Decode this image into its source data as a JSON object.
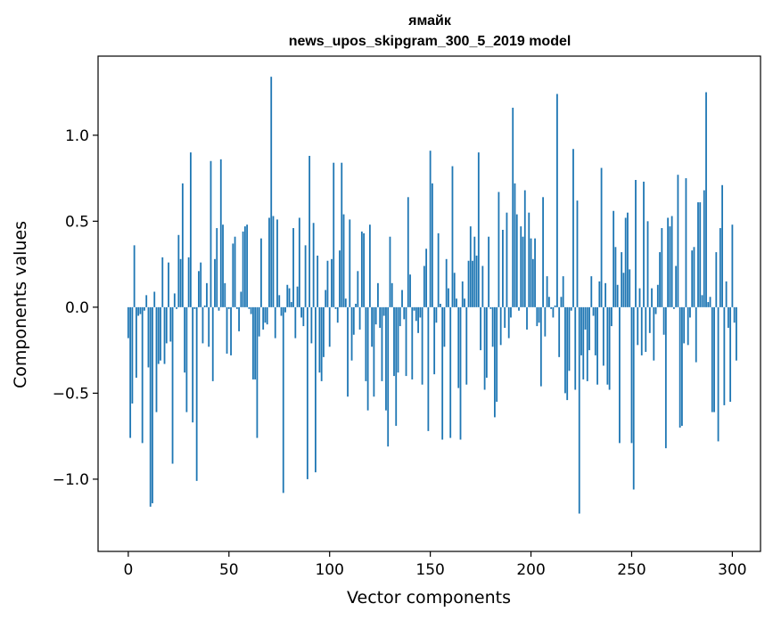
{
  "chart_data": {
    "type": "bar",
    "title": "ямайк",
    "subtitle": "news_upos_skipgram_300_5_2019 model",
    "xlabel": "Vector components",
    "ylabel": "Components values",
    "xlim": [
      -15,
      314
    ],
    "ylim": [
      -1.42,
      1.46
    ],
    "xticks": [
      0,
      50,
      100,
      150,
      200,
      250,
      300
    ],
    "xtick_labels": [
      "0",
      "50",
      "100",
      "150",
      "200",
      "250",
      "300"
    ],
    "yticks": [
      -1.0,
      -0.5,
      0.0,
      0.5,
      1.0
    ],
    "ytick_labels": [
      "−1.0",
      "−0.5",
      "0.0",
      "0.5",
      "1.0"
    ],
    "color": "#1f77b4",
    "x": "indices 0..299",
    "values": [
      -0.18,
      -0.76,
      -0.56,
      0.36,
      -0.41,
      -0.05,
      -0.04,
      -0.79,
      -0.02,
      0.07,
      -0.35,
      -1.16,
      -1.14,
      0.09,
      -0.61,
      -0.33,
      -0.31,
      0.29,
      -0.33,
      -0.21,
      0.26,
      -0.2,
      -0.91,
      0.08,
      -0.01,
      0.42,
      0.28,
      0.72,
      -0.38,
      -0.61,
      0.29,
      0.9,
      -0.67,
      -0.01,
      -1.01,
      0.21,
      0.26,
      -0.21,
      0.01,
      0.14,
      -0.23,
      0.85,
      -0.43,
      0.28,
      0.46,
      -0.02,
      0.86,
      0.48,
      0.14,
      -0.27,
      -0.01,
      -0.28,
      0.37,
      0.41,
      -0.01,
      -0.14,
      0.09,
      0.44,
      0.47,
      0.48,
      -0.01,
      -0.04,
      -0.42,
      -0.42,
      -0.76,
      -0.17,
      0.4,
      -0.13,
      -0.09,
      -0.1,
      0.52,
      1.34,
      0.53,
      -0.18,
      0.51,
      0.07,
      -0.05,
      -1.08,
      -0.03,
      0.13,
      0.11,
      0.03,
      0.46,
      -0.18,
      0.12,
      0.52,
      -0.06,
      -0.11,
      0.36,
      -1.0,
      0.88,
      -0.21,
      0.49,
      -0.96,
      0.3,
      -0.38,
      -0.43,
      -0.29,
      0.1,
      0.27,
      -0.23,
      0.28,
      0.84,
      -0.01,
      -0.09,
      0.33,
      0.84,
      0.54,
      0.05,
      -0.52,
      0.51,
      -0.31,
      -0.16,
      0.02,
      0.21,
      -0.13,
      0.44,
      0.43,
      -0.43,
      -0.6,
      0.48,
      -0.23,
      -0.52,
      -0.1,
      0.14,
      -0.12,
      -0.43,
      -0.05,
      -0.6,
      -0.81,
      0.41,
      0.14,
      -0.4,
      -0.69,
      -0.38,
      -0.11,
      0.1,
      -0.07,
      -0.4,
      0.64,
      0.19,
      -0.42,
      -0.02,
      -0.08,
      -0.15,
      -0.06,
      -0.45,
      0.24,
      0.34,
      -0.72,
      0.91,
      0.72,
      -0.39,
      -0.09,
      0.43,
      0.02,
      -0.77,
      -0.23,
      0.28,
      0.11,
      -0.76,
      0.82,
      0.2,
      0.05,
      -0.47,
      -0.77,
      0.15,
      0.05,
      -0.45,
      0.27,
      0.47,
      0.27,
      0.41,
      0.3,
      0.9,
      -0.25,
      0.24,
      -0.48,
      -0.41,
      0.41,
      -0.01,
      -0.23,
      -0.64,
      -0.55,
      0.67,
      -0.22,
      0.45,
      -0.12,
      0.55,
      -0.18,
      -0.06,
      1.16,
      0.72,
      0.54,
      -0.02,
      0.47,
      0.41,
      0.68,
      -0.13,
      0.55,
      0.4,
      0.28,
      0.4,
      -0.11,
      -0.09,
      -0.46,
      0.64,
      -0.17,
      0.18,
      0.06,
      -0.01,
      -0.06,
      0.01,
      1.24,
      -0.29,
      0.06,
      0.18,
      -0.5,
      -0.54,
      -0.37,
      -0.02,
      0.92,
      -0.48,
      0.62,
      -1.2,
      -0.28,
      -0.42,
      -0.13,
      -0.43,
      -0.25,
      0.18,
      -0.05,
      -0.28,
      -0.45,
      0.15,
      0.81,
      -0.34,
      0.14,
      -0.45,
      -0.48,
      -0.11,
      0.56,
      0.35,
      0.13,
      -0.79,
      0.32,
      0.2,
      0.52,
      0.55,
      0.22,
      -0.79,
      -1.06,
      0.74,
      -0.22,
      0.11,
      -0.28,
      0.73,
      -0.26,
      0.5,
      -0.15,
      0.11,
      -0.31,
      -0.04,
      0.13,
      0.32,
      0.46,
      -0.16,
      -0.82,
      0.52,
      0.47,
      0.53,
      -0.01,
      0.24,
      0.77,
      -0.7,
      -0.69,
      -0.21,
      0.75,
      -0.22,
      -0.06,
      0.33,
      0.35,
      -0.32,
      0.61,
      0.61,
      0.07,
      0.68,
      1.25,
      0.03,
      0.06,
      -0.61,
      -0.61,
      0.32,
      -0.78,
      0.46,
      0.71,
      -0.57,
      0.15,
      -0.12,
      -0.55,
      0.48,
      -0.09,
      -0.31
    ]
  }
}
